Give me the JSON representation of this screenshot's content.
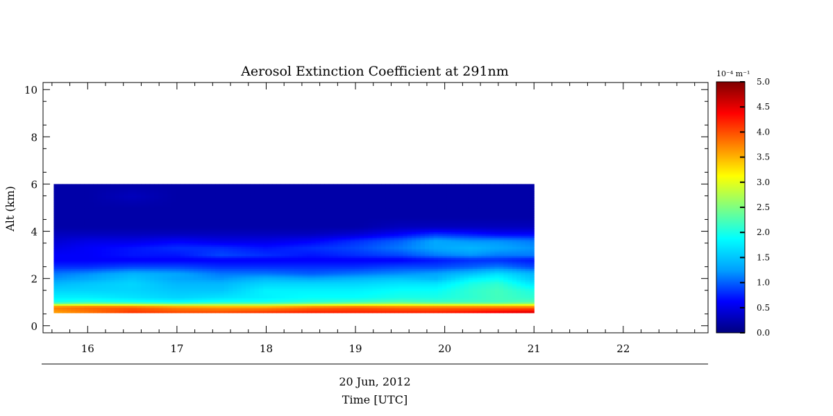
{
  "chart_data": {
    "type": "heatmap",
    "title": "Aerosol Extinction Coefficient at 291nm",
    "xlabel": "Time [UTC]",
    "date_label": "20 Jun, 2012",
    "ylabel": "Alt (km)",
    "xlim": [
      15.5,
      22.95
    ],
    "ylim": [
      -0.3,
      10.3
    ],
    "x_ticks": [
      16,
      17,
      18,
      19,
      20,
      21,
      22
    ],
    "x_tick_labels": [
      "16",
      "17",
      "18",
      "19",
      "20",
      "21",
      "22"
    ],
    "y_ticks": [
      0,
      2,
      4,
      6,
      8,
      10
    ],
    "y_tick_labels": [
      "0",
      "2",
      "4",
      "6",
      "8",
      "10"
    ],
    "data_extent": {
      "x": [
        15.62,
        21.0
      ],
      "y": [
        0.55,
        6.0
      ]
    },
    "altitude_levels": [
      0.6,
      0.8,
      1.0,
      1.2,
      1.5,
      1.8,
      2.0,
      2.2,
      2.5,
      2.8,
      3.0,
      3.3,
      3.6,
      3.9,
      4.2,
      4.6,
      5.0,
      5.5,
      6.0
    ],
    "profiles": [
      {
        "time": 15.62,
        "extinction": [
          3.6,
          3.8,
          2.0,
          1.8,
          1.6,
          1.4,
          1.2,
          1.1,
          0.8,
          0.6,
          0.6,
          0.5,
          0.4,
          0.3,
          0.2,
          0.2,
          0.2,
          0.2,
          0.2
        ]
      },
      {
        "time": 16.0,
        "extinction": [
          3.8,
          3.9,
          2.1,
          1.8,
          1.6,
          1.5,
          1.3,
          1.2,
          0.8,
          0.6,
          0.6,
          0.6,
          0.5,
          0.3,
          0.2,
          0.2,
          0.2,
          0.2,
          0.2
        ]
      },
      {
        "time": 16.5,
        "extinction": [
          4.1,
          3.9,
          2.0,
          1.7,
          1.6,
          1.6,
          1.5,
          1.4,
          0.9,
          0.6,
          0.7,
          0.7,
          0.5,
          0.3,
          0.2,
          0.2,
          0.2,
          0.3,
          0.2
        ]
      },
      {
        "time": 17.0,
        "extinction": [
          4.0,
          3.7,
          1.9,
          1.6,
          1.5,
          1.4,
          1.3,
          1.3,
          0.9,
          0.6,
          0.7,
          0.8,
          0.6,
          0.3,
          0.2,
          0.2,
          0.2,
          0.2,
          0.2
        ]
      },
      {
        "time": 17.5,
        "extinction": [
          4.0,
          3.6,
          2.0,
          1.7,
          1.5,
          1.4,
          1.2,
          1.1,
          0.8,
          0.6,
          0.9,
          0.8,
          0.5,
          0.3,
          0.2,
          0.2,
          0.2,
          0.2,
          0.2
        ]
      },
      {
        "time": 18.0,
        "extinction": [
          4.1,
          3.6,
          2.0,
          1.8,
          1.8,
          1.6,
          1.4,
          1.1,
          0.8,
          0.6,
          0.8,
          0.7,
          0.5,
          0.3,
          0.2,
          0.2,
          0.2,
          0.2,
          0.2
        ]
      },
      {
        "time": 18.5,
        "extinction": [
          4.2,
          3.8,
          2.1,
          1.9,
          1.8,
          1.6,
          1.3,
          1.0,
          0.8,
          0.6,
          0.7,
          0.8,
          0.6,
          0.3,
          0.2,
          0.2,
          0.2,
          0.2,
          0.2
        ]
      },
      {
        "time": 19.0,
        "extinction": [
          4.2,
          3.9,
          2.2,
          1.9,
          1.8,
          1.6,
          1.4,
          1.1,
          0.8,
          0.6,
          0.8,
          0.9,
          0.8,
          0.4,
          0.2,
          0.2,
          0.2,
          0.2,
          0.2
        ]
      },
      {
        "time": 19.5,
        "extinction": [
          4.2,
          3.8,
          2.3,
          2.0,
          1.9,
          1.7,
          1.5,
          1.2,
          0.9,
          0.6,
          0.9,
          1.1,
          1.0,
          0.6,
          0.3,
          0.2,
          0.2,
          0.2,
          0.2
        ]
      },
      {
        "time": 19.9,
        "extinction": [
          4.2,
          3.8,
          2.2,
          2.0,
          1.9,
          1.7,
          1.4,
          1.3,
          0.9,
          0.7,
          1.1,
          1.3,
          1.3,
          0.8,
          0.3,
          0.2,
          0.2,
          0.2,
          0.2
        ]
      },
      {
        "time": 20.3,
        "extinction": [
          4.3,
          3.8,
          2.2,
          2.1,
          2.1,
          2.0,
          1.8,
          1.5,
          1.0,
          0.8,
          1.2,
          1.4,
          1.2,
          0.7,
          0.3,
          0.2,
          0.2,
          0.2,
          0.2
        ]
      },
      {
        "time": 20.6,
        "extinction": [
          4.4,
          3.8,
          2.2,
          2.2,
          2.2,
          2.1,
          1.9,
          1.7,
          1.1,
          0.8,
          1.1,
          1.3,
          1.2,
          0.6,
          0.3,
          0.2,
          0.2,
          0.2,
          0.2
        ]
      },
      {
        "time": 21.0,
        "extinction": [
          4.5,
          3.8,
          2.3,
          2.1,
          2.0,
          1.7,
          1.5,
          1.4,
          0.9,
          0.7,
          1.1,
          1.2,
          1.1,
          0.6,
          0.3,
          0.2,
          0.2,
          0.2,
          0.2
        ]
      }
    ],
    "colorbar": {
      "unit_label": "10⁻⁴ m⁻¹",
      "range": [
        0.0,
        5.0
      ],
      "ticks": [
        0.0,
        0.5,
        1.0,
        1.5,
        2.0,
        2.5,
        3.0,
        3.5,
        4.0,
        4.5,
        5.0
      ],
      "tick_labels": [
        "0.0",
        "0.5",
        "1.0",
        "1.5",
        "2.0",
        "2.5",
        "3.0",
        "3.5",
        "4.0",
        "4.5",
        "5.0"
      ],
      "colormap": [
        "#00007f",
        "#0000ff",
        "#00a0ff",
        "#00ffff",
        "#80ff80",
        "#ffff00",
        "#ff8000",
        "#ff0000",
        "#7f0000"
      ]
    }
  }
}
